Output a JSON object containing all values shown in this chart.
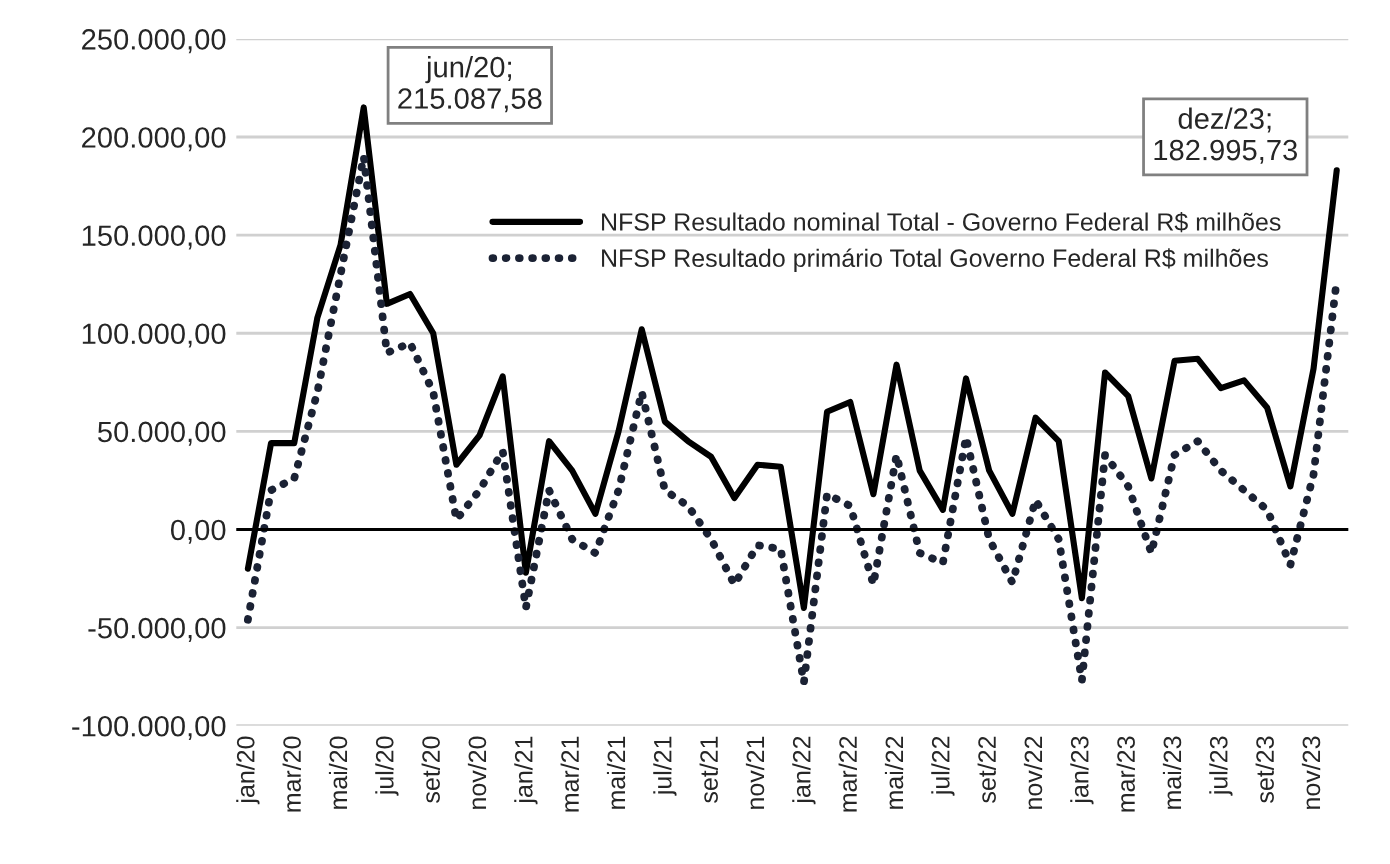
{
  "chart_data": {
    "type": "line",
    "categories": [
      "jan/20",
      null,
      "mar/20",
      null,
      "mai/20",
      null,
      "jul/20",
      null,
      "set/20",
      null,
      "nov/20",
      null,
      "jan/21",
      null,
      "mar/21",
      null,
      "mai/21",
      null,
      "jul/21",
      null,
      "set/21",
      null,
      "nov/21",
      null,
      "jan/22",
      null,
      "mar/22",
      null,
      "mai/22",
      null,
      "jul/22",
      null,
      "set/22",
      null,
      "nov/22",
      null,
      "jan/23",
      null,
      "mar/23",
      null,
      "mai/23",
      null,
      "jul/23",
      null,
      "set/23",
      null,
      "nov/23",
      null
    ],
    "series": [
      {
        "name": "NFSP Resultado nominal Total - Governo Federal R$ milhões",
        "color": "#000000",
        "line_style": "solid",
        "values": [
          -20000,
          44000,
          44000,
          108000,
          145000,
          215087.58,
          115000,
          120000,
          100000,
          33000,
          48000,
          78000,
          -22000,
          45000,
          30000,
          8000,
          50000,
          102000,
          55000,
          45000,
          37000,
          16000,
          33000,
          32000,
          -40000,
          60000,
          65000,
          18000,
          84000,
          30000,
          10000,
          77000,
          30000,
          8000,
          57000,
          45000,
          -35000,
          80000,
          68000,
          26000,
          86000,
          87000,
          72000,
          76000,
          62000,
          22000,
          82000,
          182995.73
        ]
      },
      {
        "name": "NFSP Resultado primário Total Governo Federal R$ milhões",
        "color": "#1b2234",
        "line_style": "dotted",
        "values": [
          -46000,
          20000,
          26000,
          70000,
          130000,
          190000,
          90000,
          95000,
          70000,
          5000,
          20000,
          40000,
          -40000,
          20000,
          -5000,
          -12000,
          20000,
          70000,
          20000,
          12000,
          -5000,
          -28000,
          -8000,
          -10000,
          -78000,
          18000,
          12000,
          -28000,
          38000,
          -12000,
          -17000,
          47000,
          -5000,
          -27000,
          15000,
          -5000,
          -77000,
          38000,
          22000,
          -12000,
          38000,
          45000,
          30000,
          20000,
          10000,
          -18000,
          28000,
          127000
        ]
      }
    ],
    "ylim": [
      -100000,
      250000
    ],
    "yticks": [
      {
        "value": -100000,
        "label": "-100.000,00"
      },
      {
        "value": -50000,
        "label": "-50.000,00"
      },
      {
        "value": 0,
        "label": "0,00"
      },
      {
        "value": 50000,
        "label": "50.000,00"
      },
      {
        "value": 100000,
        "label": "100.000,00"
      },
      {
        "value": 150000,
        "label": "150.000,00"
      },
      {
        "value": 200000,
        "label": "200.000,00"
      },
      {
        "value": 250000,
        "label": "250.000,00"
      }
    ],
    "grid": "y",
    "legend": "top right",
    "annotations": [
      "jun/20;\n215.087,58",
      "dez/23;\n182.995,73"
    ]
  }
}
